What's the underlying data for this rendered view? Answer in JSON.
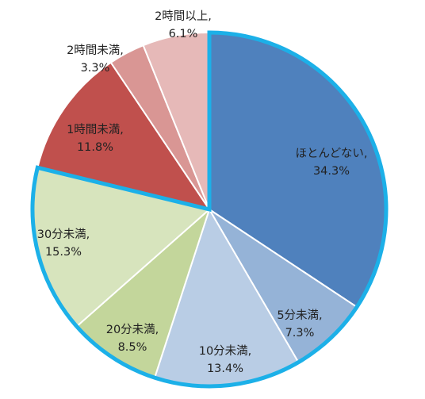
{
  "chart_data": {
    "type": "pie",
    "title": "",
    "start_angle_deg": 0,
    "direction": "clockwise",
    "slices": [
      {
        "label": "ほとんどない,",
        "value": 34.3,
        "value_label": "34.3%",
        "color": "#4F81BD",
        "highlighted": true
      },
      {
        "label": "5分未満,",
        "value": 7.3,
        "value_label": "7.3%",
        "color": "#95B3D7",
        "highlighted": true
      },
      {
        "label": "10分未満,",
        "value": 13.4,
        "value_label": "13.4%",
        "color": "#B9CDE5",
        "highlighted": true
      },
      {
        "label": "20分未満,",
        "value": 8.5,
        "value_label": "8.5%",
        "color": "#C3D69B",
        "highlighted": true
      },
      {
        "label": "30分未満,",
        "value": 15.3,
        "value_label": "15.3%",
        "color": "#D7E4BD",
        "highlighted": true
      },
      {
        "label": "1時間未満,",
        "value": 11.8,
        "value_label": "11.8%",
        "color": "#C0504D",
        "highlighted": false
      },
      {
        "label": "2時間未満,",
        "value": 3.3,
        "value_label": "3.3%",
        "color": "#D99694",
        "highlighted": false
      },
      {
        "label": "2時間以上,",
        "value": 6.1,
        "value_label": "6.1%",
        "color": "#E6B9B8",
        "highlighted": false
      }
    ],
    "highlight_outline_color": "#1CB0E8",
    "slice_border_color": "#FFFFFF"
  }
}
